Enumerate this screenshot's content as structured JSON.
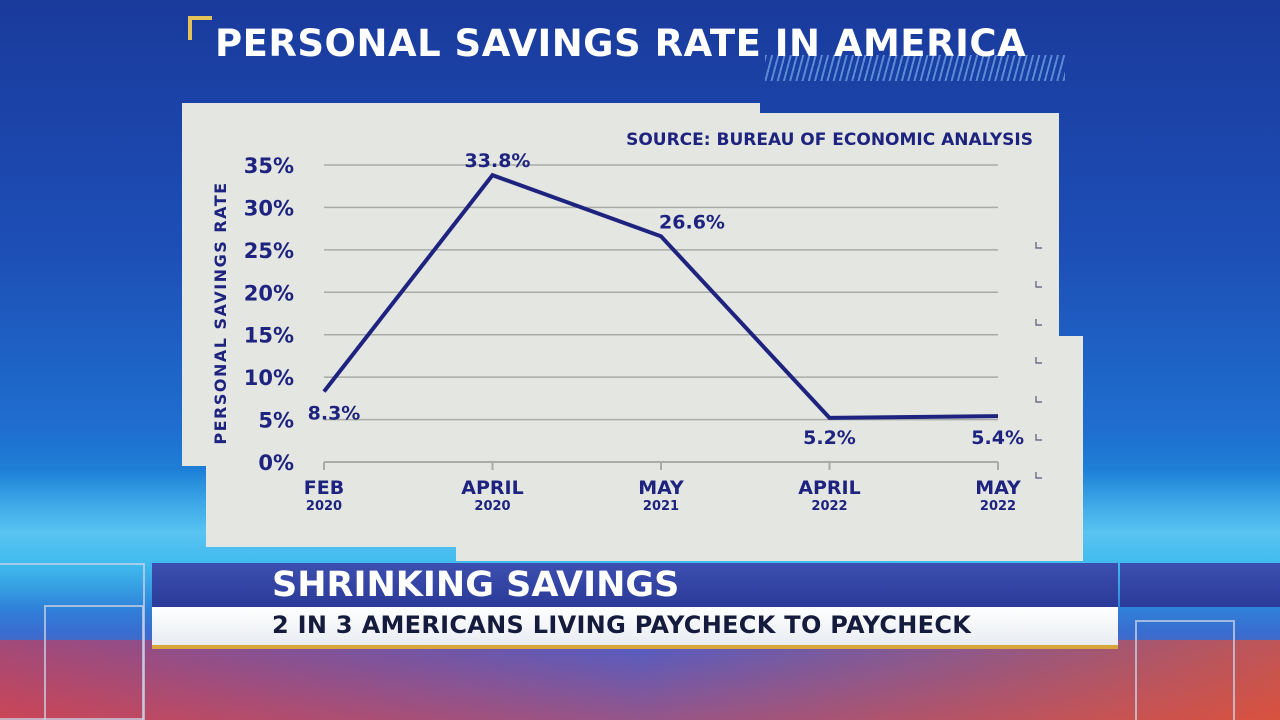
{
  "page_title": "PERSONAL SAVINGS RATE IN AMERICA",
  "lower_third": {
    "headline": "SHRINKING SAVINGS",
    "subhead": "2 IN 3 AMERICANS LIVING PAYCHECK TO PAYCHECK"
  },
  "colors": {
    "series": "#1d237e",
    "grid": "#a9aba7",
    "panel": "#e4e6e2",
    "accent": "#e4c25a"
  },
  "chart_data": {
    "type": "line",
    "source": "SOURCE: BUREAU OF ECONOMIC ANALYSIS",
    "ylabel": "PERSONAL SAVINGS RATE",
    "ylim": [
      0,
      35
    ],
    "yticks": [
      0,
      5,
      10,
      15,
      20,
      25,
      30,
      35
    ],
    "ytick_labels": [
      "0%",
      "5%",
      "10%",
      "15%",
      "20%",
      "25%",
      "30%",
      "35%"
    ],
    "grid": true,
    "categories": [
      {
        "month": "FEB",
        "year": "2020"
      },
      {
        "month": "APRIL",
        "year": "2020"
      },
      {
        "month": "MAY",
        "year": "2021"
      },
      {
        "month": "APRIL",
        "year": "2022"
      },
      {
        "month": "MAY",
        "year": "2022"
      }
    ],
    "values": [
      8.3,
      33.8,
      26.6,
      5.2,
      5.4
    ],
    "data_labels": [
      "8.3%",
      "33.8%",
      "26.6%",
      "5.2%",
      "5.4%"
    ]
  }
}
